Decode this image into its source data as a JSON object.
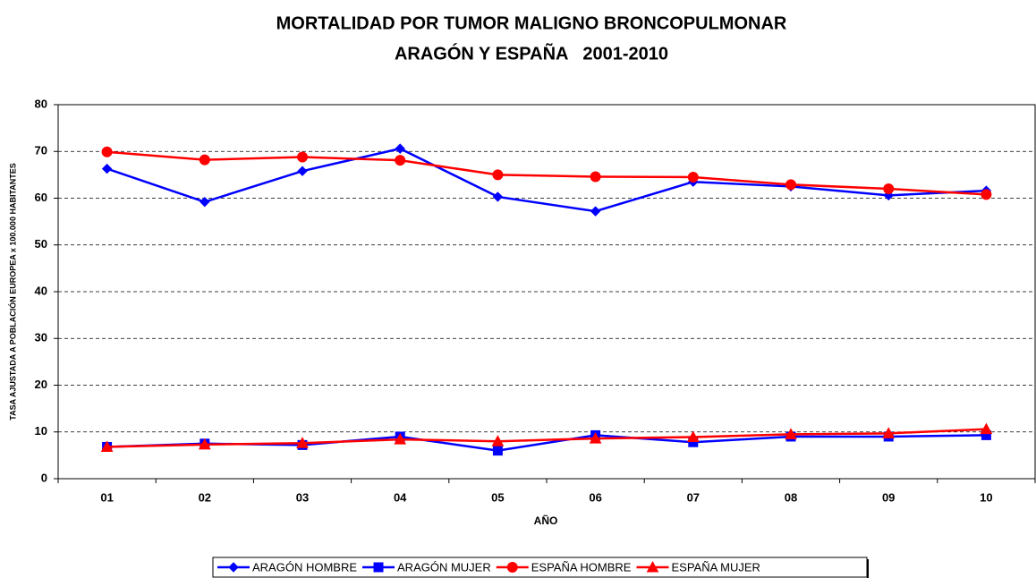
{
  "chart_data": {
    "type": "line",
    "title": [
      "MORTALIDAD POR TUMOR MALIGNO BRONCOPULMONAR",
      "ARAGÓN Y ESPAÑA   2001-2010"
    ],
    "x_label": "AÑO",
    "y_label": "TASA AJUSTADA A POBLACIÓN EUROPEA x 100.000 HABITANTES",
    "categories": [
      "01",
      "02",
      "03",
      "04",
      "05",
      "06",
      "07",
      "08",
      "09",
      "10"
    ],
    "ylim": [
      0,
      80
    ],
    "yticks": [
      0,
      10,
      20,
      30,
      40,
      50,
      60,
      70,
      80
    ],
    "grid": true,
    "legend": "bottom",
    "series": [
      {
        "name": "ARAGÓN HOMBRE",
        "color": "#0000ff",
        "marker": "diamond",
        "values": [
          66.3,
          59.2,
          65.8,
          70.6,
          60.3,
          57.2,
          63.5,
          62.5,
          60.6,
          61.6
        ]
      },
      {
        "name": "ARAGÓN MUJER",
        "color": "#0000ff",
        "marker": "square",
        "values": [
          6.8,
          7.5,
          7.2,
          9.0,
          6.0,
          9.3,
          7.8,
          9.0,
          9.0,
          9.3
        ]
      },
      {
        "name": "ESPAÑA HOMBRE",
        "color": "#ff0000",
        "marker": "circle",
        "values": [
          69.9,
          68.2,
          68.8,
          68.1,
          65.0,
          64.6,
          64.5,
          62.9,
          62.0,
          60.8
        ]
      },
      {
        "name": "ESPAÑA MUJER",
        "color": "#ff0000",
        "marker": "triangle",
        "values": [
          6.8,
          7.3,
          7.6,
          8.4,
          8.0,
          8.6,
          8.9,
          9.5,
          9.7,
          10.6
        ]
      }
    ]
  }
}
